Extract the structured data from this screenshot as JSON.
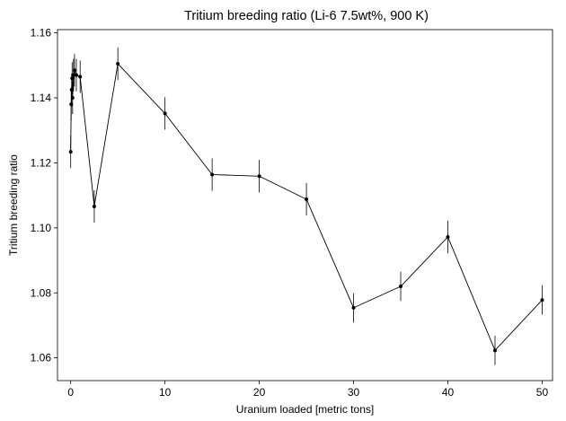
{
  "chart_data": {
    "type": "line",
    "title": "Tritium breeding ratio (Li-6 7.5wt%, 900 K)",
    "xlabel": "Uranium loaded [metric tons]",
    "ylabel": "Tritium breeding ratio",
    "xlim": [
      -1.4,
      51.1
    ],
    "ylim": [
      1.053,
      1.161
    ],
    "xticks": [
      0,
      10,
      20,
      30,
      40,
      50
    ],
    "xtick_labels": [
      "0",
      "10",
      "20",
      "30",
      "40",
      "50"
    ],
    "yticks": [
      1.06,
      1.08,
      1.1,
      1.12,
      1.14,
      1.16
    ],
    "ytick_labels": [
      "1.06",
      "1.08",
      "1.10",
      "1.12",
      "1.14",
      "1.16"
    ],
    "grid": false,
    "legend": "none",
    "series": [
      {
        "color": "#000000",
        "marker": "circle",
        "error_bars": true,
        "points": [
          {
            "x": 0.0,
            "y": 1.1234,
            "err": 0.005
          },
          {
            "x": 0.05,
            "y": 1.138,
            "err": 0.005
          },
          {
            "x": 0.1,
            "y": 1.1425,
            "err": 0.005
          },
          {
            "x": 0.15,
            "y": 1.146,
            "err": 0.005
          },
          {
            "x": 0.2,
            "y": 1.14,
            "err": 0.005
          },
          {
            "x": 0.3,
            "y": 1.147,
            "err": 0.005
          },
          {
            "x": 0.4,
            "y": 1.1485,
            "err": 0.005
          },
          {
            "x": 0.6,
            "y": 1.147,
            "err": 0.005
          },
          {
            "x": 1.0,
            "y": 1.1465,
            "err": 0.005
          },
          {
            "x": 2.5,
            "y": 1.1066,
            "err": 0.005
          },
          {
            "x": 5.0,
            "y": 1.1505,
            "err": 0.005
          },
          {
            "x": 10.0,
            "y": 1.1352,
            "err": 0.005
          },
          {
            "x": 15.0,
            "y": 1.1164,
            "err": 0.005
          },
          {
            "x": 20.0,
            "y": 1.1159,
            "err": 0.005
          },
          {
            "x": 25.0,
            "y": 1.1088,
            "err": 0.005
          },
          {
            "x": 30.0,
            "y": 1.0754,
            "err": 0.0045
          },
          {
            "x": 35.0,
            "y": 1.082,
            "err": 0.0045
          },
          {
            "x": 40.0,
            "y": 1.0972,
            "err": 0.005
          },
          {
            "x": 45.0,
            "y": 1.0623,
            "err": 0.0045
          },
          {
            "x": 50.0,
            "y": 1.0778,
            "err": 0.0045
          }
        ]
      }
    ]
  }
}
